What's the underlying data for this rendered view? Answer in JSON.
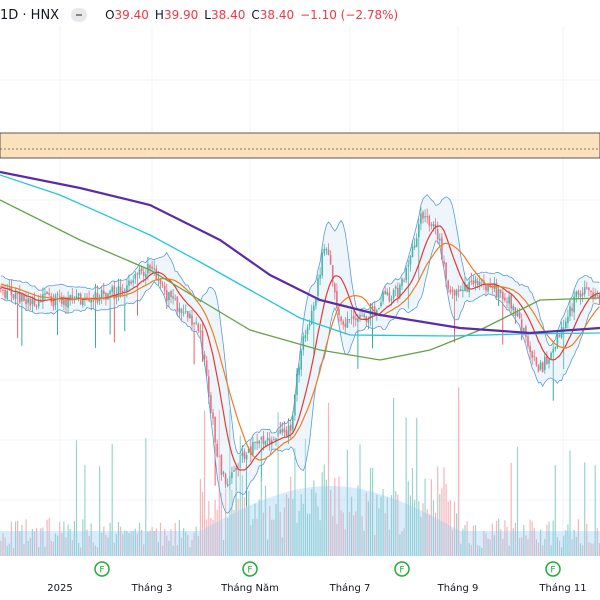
{
  "legend": {
    "symbol": "1D · HNX",
    "open_label": "O",
    "open": "39.40",
    "high_label": "H",
    "high": "39.90",
    "low_label": "L",
    "low": "38.40",
    "close_label": "C",
    "close": "38.40",
    "change": "−1.10 (−2.78%)"
  },
  "x_axis": [
    "2025",
    "Tháng 3",
    "Tháng Năm",
    "Tháng 7",
    "Tháng 9",
    "Tháng 11"
  ],
  "event_marker_label": "F",
  "colors": {
    "up": "#089981",
    "down": "#f23645",
    "zone": "#fbe2bd",
    "ma_purple": "#5b2ca8",
    "ma_cyan": "#26c6da",
    "ma_green": "#66a34a",
    "ma_red": "#e53935",
    "ma_orange": "#ef7d22",
    "bb": "#5b9bd5"
  }
}
